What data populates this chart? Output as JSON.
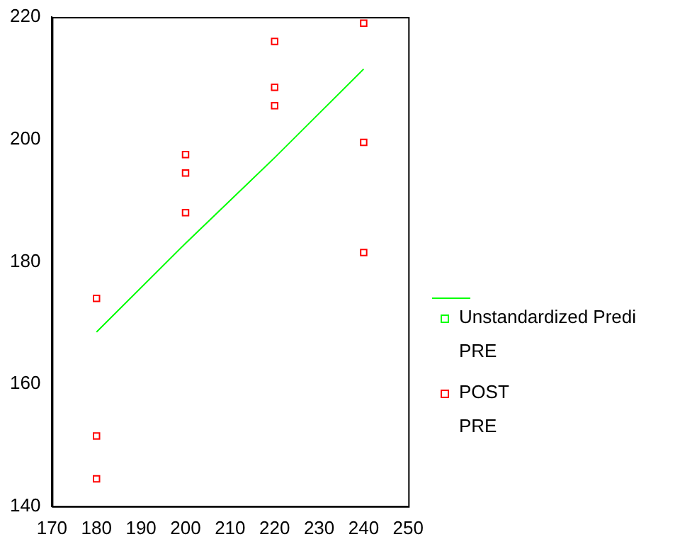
{
  "chart_data": {
    "type": "scatter",
    "series": [
      {
        "name": "Unstandardized Predi\nPRE",
        "type": "line",
        "marker": "none",
        "color": "#00ff00",
        "x": [
          180,
          200,
          220,
          240
        ],
        "values": [
          168.5,
          183,
          197,
          211.5
        ]
      },
      {
        "name": "POST\nPRE",
        "type": "scatter",
        "color": "#ff0000",
        "x": [
          180,
          180,
          180,
          200,
          200,
          200,
          220,
          220,
          220,
          240,
          240,
          240
        ],
        "values": [
          174,
          151.5,
          144.5,
          197.5,
          194.5,
          188,
          216,
          208.5,
          205.5,
          219,
          199.5,
          181.5
        ]
      }
    ],
    "xlim": [
      170,
      250
    ],
    "xticks": [
      170,
      180,
      190,
      200,
      210,
      220,
      230,
      240,
      250
    ],
    "ylim": [
      140,
      220
    ],
    "yticks": [
      140,
      160,
      180,
      200,
      220
    ],
    "grid": false,
    "legend": "right",
    "marker": "square"
  }
}
